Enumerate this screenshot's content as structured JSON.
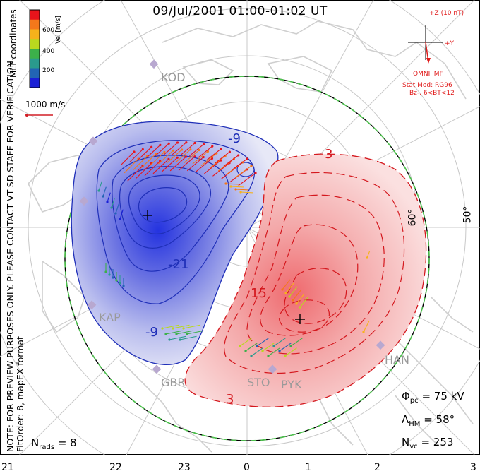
{
  "title": "09/Jul/2001 01:00-01:02 UT",
  "note_line1": "NOTE: FOR PREVIEW PURPOSES ONLY. PLEASE CONTACT VT-SD STAFF FOR VERIFICATION.",
  "note_line2": "FitOrder: 8, mapEX format",
  "coord_label": "MLT coordinates",
  "colorbar": {
    "label": "Vel [m/s]",
    "ticks": [
      "600",
      "400",
      "200"
    ],
    "colors": [
      "#e8141b",
      "#f4781b",
      "#f6b21b",
      "#b9d81f",
      "#3cb04a",
      "#2a9a8d",
      "#2264b4",
      "#1a20d6"
    ]
  },
  "ref_vector": {
    "label": "1000 m/s",
    "color": "#d21f26"
  },
  "imf": {
    "z_label": "+Z (10 nT)",
    "y_label": "+Y",
    "source": "OMNI IMF",
    "stat_mod": "Stat Mod: RG96",
    "condition": "Bz-, 6<BT<12"
  },
  "stats": {
    "phi_pc": "= 75 kV",
    "lambda_hm": "= 58°",
    "n_vc": "= 253",
    "n_rads": "= 8"
  },
  "mlt_labels": [
    "21",
    "22",
    "23",
    "0",
    "1",
    "2",
    "3"
  ],
  "lat_labels": [
    "60°",
    "50°"
  ],
  "sites": [
    "KOD",
    "KAP",
    "GBR",
    "STO",
    "PYK",
    "HAN"
  ],
  "contour_labels": {
    "neg_outer": "-9",
    "neg_inner": "-21",
    "neg_top": "-9",
    "pos_top": "3",
    "pos_mid": "15",
    "pos_bottom": "3"
  },
  "colors": {
    "negative": "#1f2fb8",
    "positive": "#d4181e",
    "coast": "#c9c9c9",
    "grid": "#b8b8b8",
    "hmb": "#2fa82f"
  }
}
